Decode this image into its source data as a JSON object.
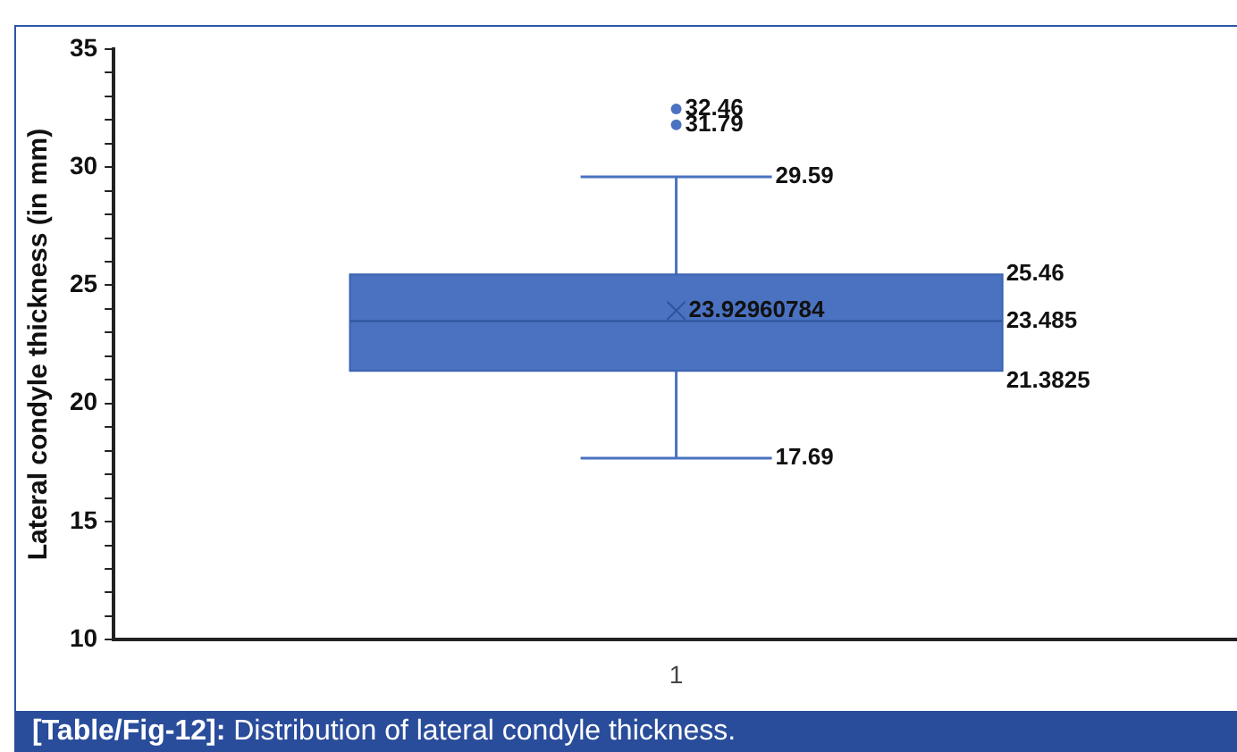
{
  "chart_data": {
    "type": "box",
    "ylabel": "Lateral condyle thickness (in mm)",
    "categories": [
      "1"
    ],
    "boxes": [
      {
        "low": 17.69,
        "q1": 21.3825,
        "median": 23.485,
        "q3": 25.46,
        "high": 29.59,
        "mean": 23.92960784,
        "outliers": [
          31.79,
          32.46
        ]
      }
    ],
    "color": "#4a72c0",
    "ylim": [
      10,
      35
    ],
    "yticks": [
      10,
      {
        "value": 11,
        "label": null
      },
      {
        "value": 12,
        "label": null
      },
      {
        "value": 13,
        "label": null
      },
      {
        "value": 14,
        "label": null
      },
      15,
      {
        "value": 16,
        "label": null
      },
      {
        "value": 17,
        "label": null
      },
      {
        "value": 18,
        "label": null
      },
      {
        "value": 19,
        "label": null
      },
      20,
      {
        "value": 21,
        "label": null
      },
      {
        "value": 22,
        "label": null
      },
      {
        "value": 23,
        "label": null
      },
      {
        "value": 24,
        "label": null
      },
      25,
      {
        "value": 26,
        "label": null
      },
      {
        "value": 27,
        "label": null
      },
      {
        "value": 28,
        "label": null
      },
      {
        "value": 29,
        "label": null
      },
      30,
      {
        "value": 31,
        "label": null
      },
      {
        "value": 32,
        "label": null
      },
      {
        "value": 33,
        "label": null
      },
      {
        "value": 34,
        "label": null
      },
      35
    ],
    "legend": false,
    "grid": false,
    "annotations": [
      "[Table/Fig-12]: Distribution of lateral condyle thickness.",
      "32.46",
      "31.79",
      "29.59",
      "25.46",
      "23.92960784",
      "23.485",
      "21.3825",
      "17.69"
    ]
  }
}
